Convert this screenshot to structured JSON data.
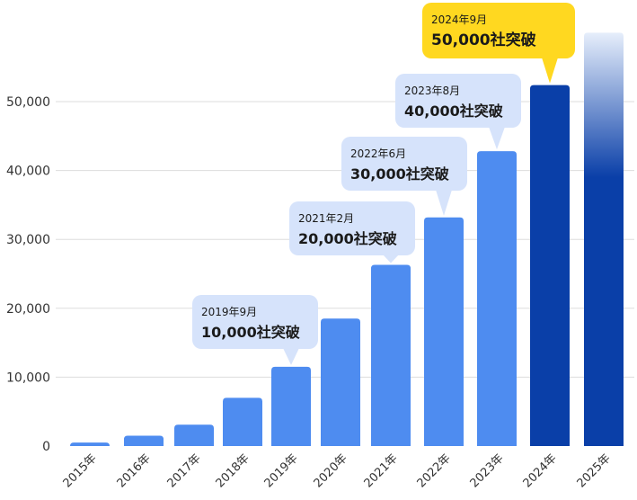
{
  "chart_data": {
    "type": "bar",
    "categories": [
      "2015年",
      "2016年",
      "2017年",
      "2018年",
      "2019年",
      "2020年",
      "2021年",
      "2022年",
      "2023年",
      "2024年",
      "2025年"
    ],
    "values": [
      500,
      1500,
      3100,
      7000,
      11500,
      18500,
      26300,
      33200,
      42800,
      52400,
      60000
    ],
    "title": "",
    "xlabel": "",
    "ylabel": "",
    "ylim": [
      0,
      60000
    ],
    "yticks": [
      0,
      10000,
      20000,
      30000,
      40000,
      50000
    ],
    "ytick_labels": [
      "0",
      "10,000",
      "20,000",
      "30,000",
      "40,000",
      "50,000"
    ],
    "grid": true,
    "colors": {
      "bar": "#4e8cf0",
      "bar_highlight": "#0a3fa8",
      "bar_fade_top": "#e6eefb",
      "callout": "#d6e3fb",
      "callout_highlight": "#ffd820",
      "grid": "#dddddd"
    },
    "annotations": [
      {
        "category": "2019年",
        "date": "2019年9月",
        "label": "10,000社突破",
        "highlight": false
      },
      {
        "category": "2021年",
        "date": "2021年2月",
        "label": "20,000社突破",
        "highlight": false
      },
      {
        "category": "2022年",
        "date": "2022年6月",
        "label": "30,000社突破",
        "highlight": false
      },
      {
        "category": "2023年",
        "date": "2023年8月",
        "label": "40,000社突破",
        "highlight": false
      },
      {
        "category": "2024年",
        "date": "2024年9月",
        "label": "50,000社突破",
        "highlight": true
      }
    ]
  }
}
